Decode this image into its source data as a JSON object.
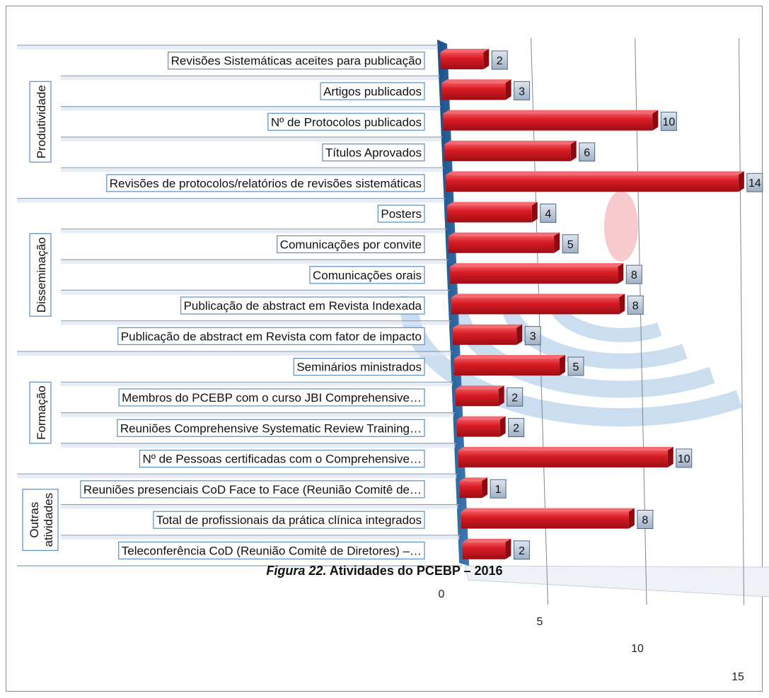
{
  "caption": {
    "figure": "Figura 22.",
    "title": "Atividades do PCEBP – 2016"
  },
  "chart_data": {
    "type": "bar",
    "orientation": "horizontal",
    "title": "",
    "xlabel": "",
    "ylabel": "",
    "xlim": [
      0,
      15
    ],
    "xticks": [
      "0",
      "5",
      "10",
      "15"
    ],
    "grid": true,
    "legend": "none",
    "bar_color": "#d0121b",
    "groups": [
      {
        "name": "Produtividade",
        "categories": [
          "Revisões Sistemáticas aceites para publicação",
          "Artigos publicados",
          "Nº de Protocolos publicados",
          "Títulos Aprovados",
          "Revisões de protocolos/relatórios de revisões sistemáticas"
        ],
        "values": [
          2,
          3,
          10,
          6,
          14
        ]
      },
      {
        "name": "Disseminação",
        "categories": [
          "Posters",
          "Comunicações por convite",
          "Comunicações orais",
          "Publicação de abstract em Revista Indexada",
          "Publicação de abstract em Revista com fator de impacto"
        ],
        "values": [
          4,
          5,
          8,
          8,
          3
        ]
      },
      {
        "name": "Formação",
        "categories": [
          "Seminários ministrados",
          "Membros do PCEBP com o curso JBI Comprehensive…",
          "Reuniões Comprehensive Systematic Review Training…",
          "Nº de Pessoas certificadas com o Comprehensive…"
        ],
        "values": [
          5,
          2,
          2,
          10
        ]
      },
      {
        "name": "Outras atividades",
        "name_lines": [
          "Outras",
          "atividades"
        ],
        "categories": [
          "Reuniões presenciais CoD Face to Face (Reunião Comitê de…",
          "Total de profissionais da prática clínica integrados",
          "Teleconferência CoD (Reunião Comitê de Diretores) –…"
        ],
        "values": [
          1,
          8,
          2
        ]
      }
    ]
  }
}
